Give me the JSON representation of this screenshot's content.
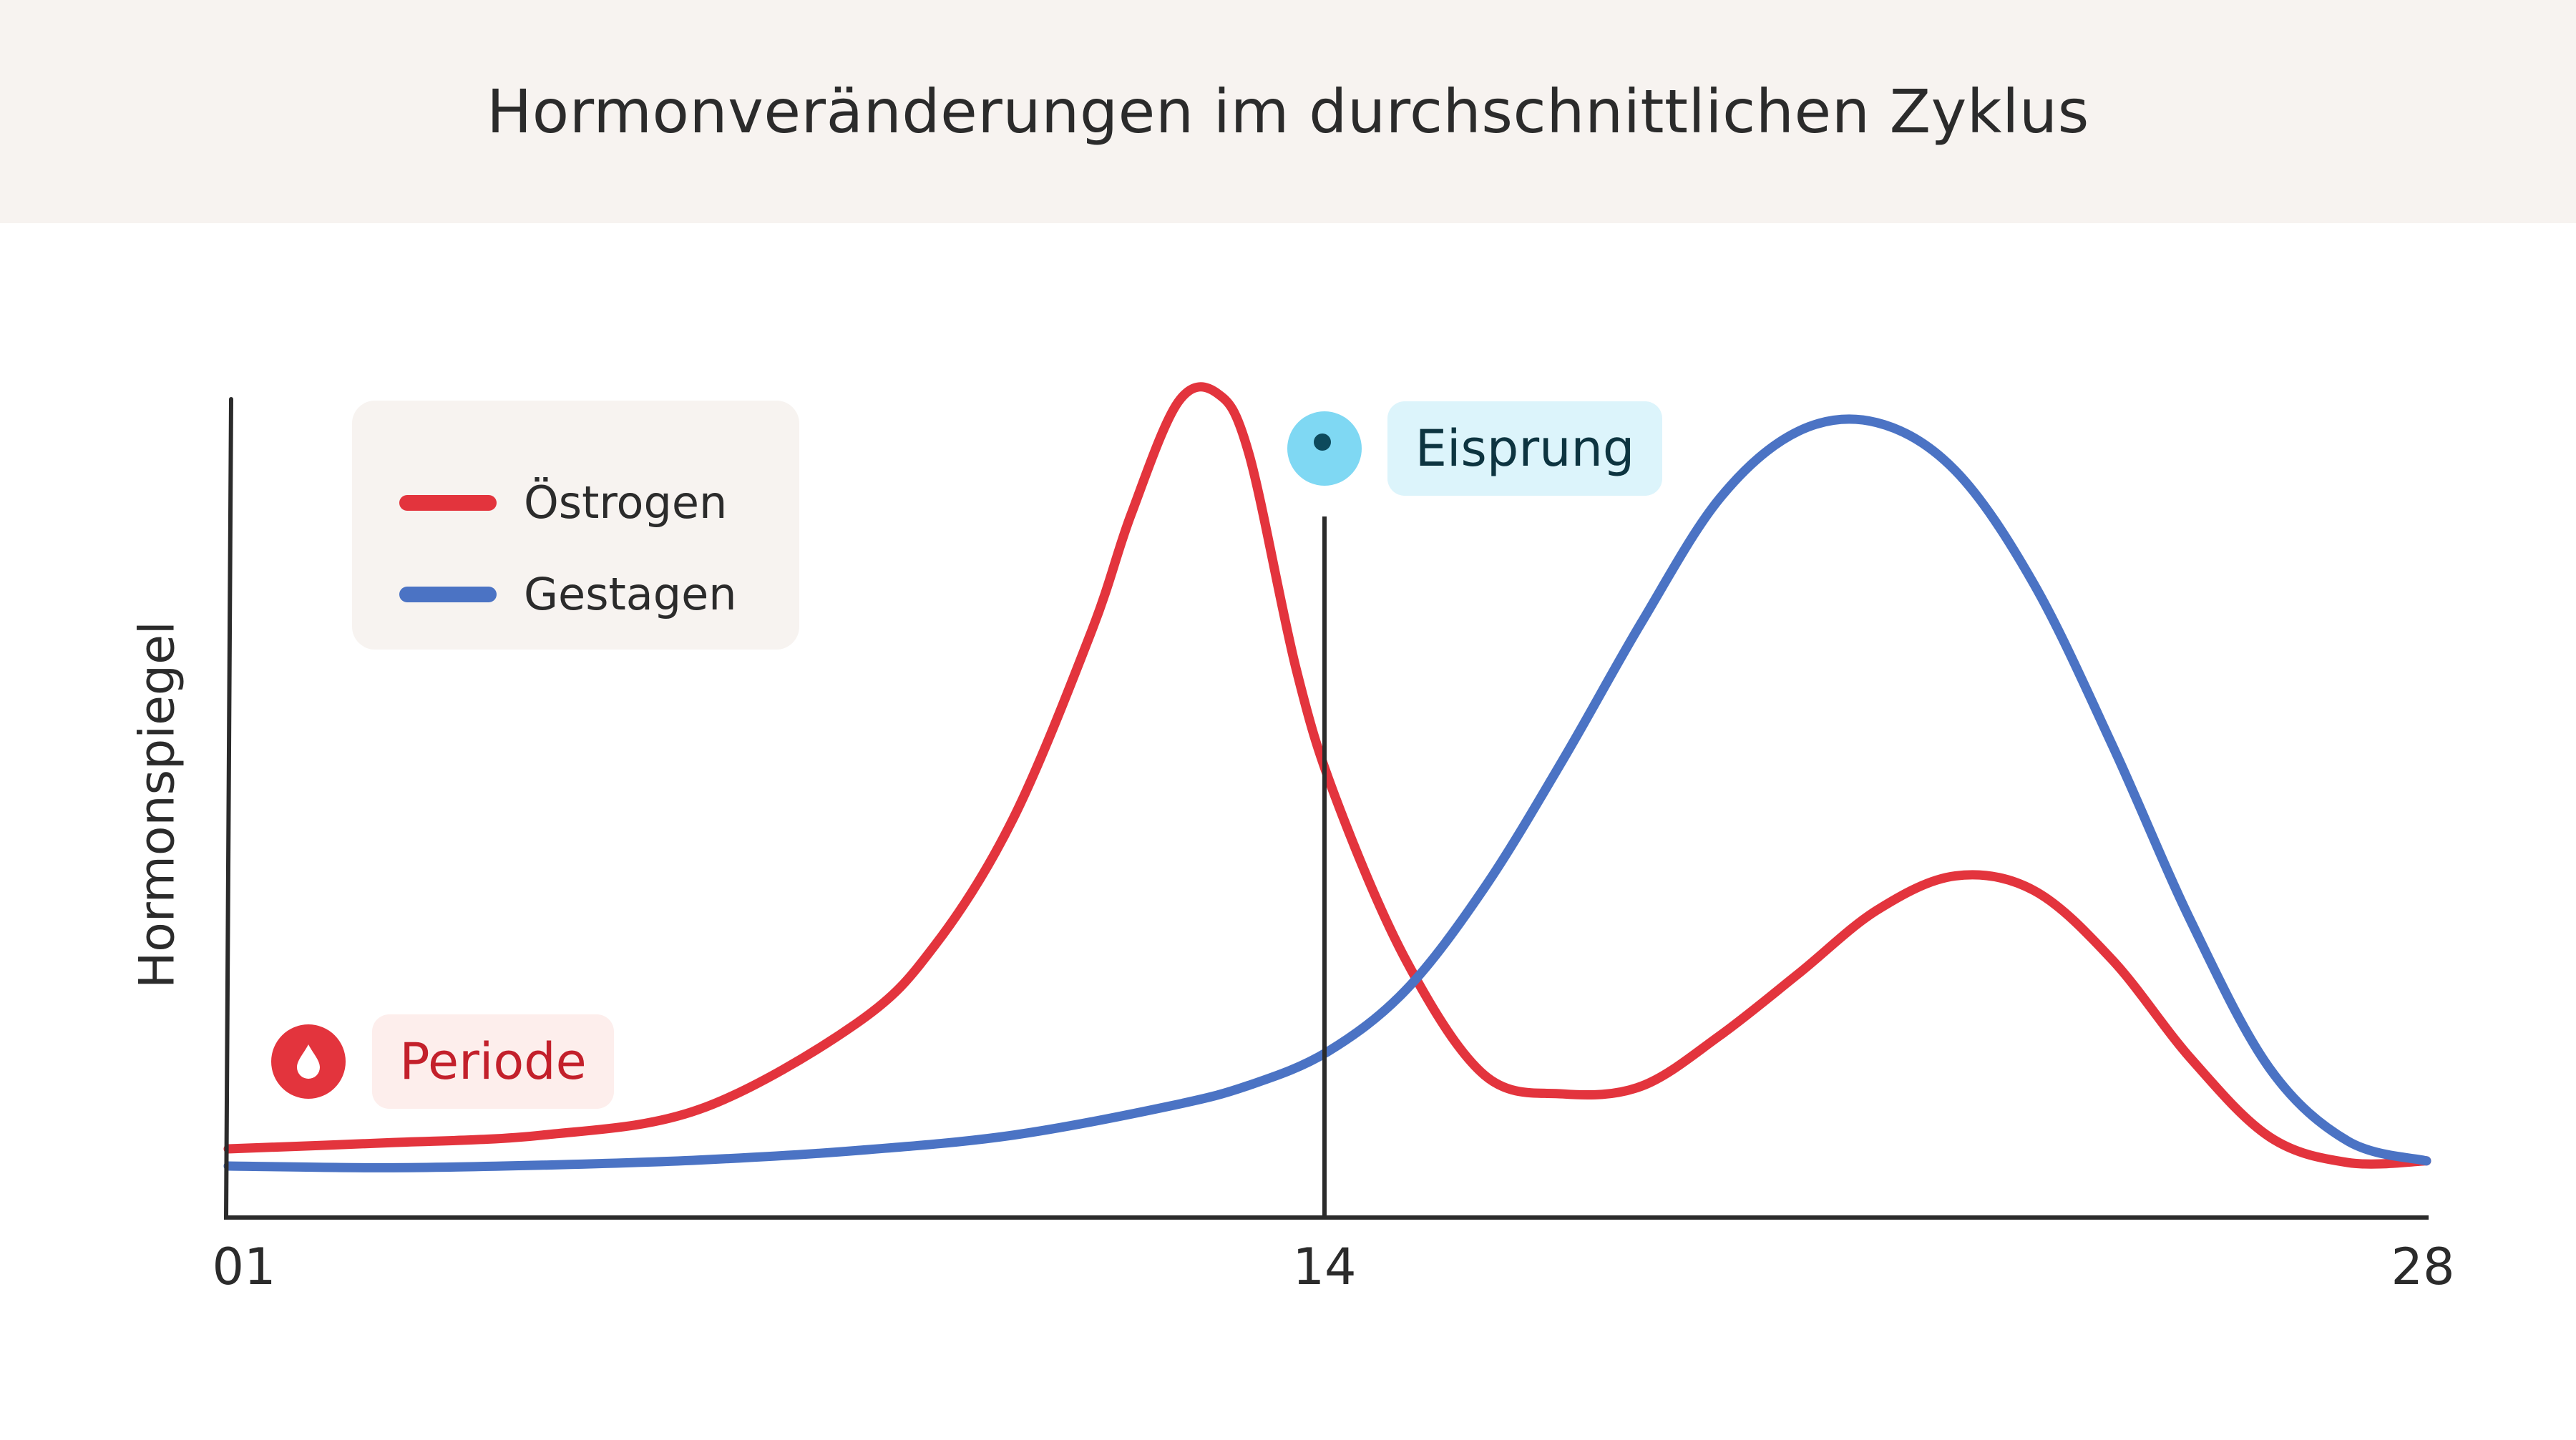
{
  "title": "Hormonveränderungen im durchschnittlichen Zyklus",
  "colors": {
    "estrogen": "#e3343d",
    "progestin": "#4b73c4",
    "period_icon": "#e3343d",
    "period_bg": "#fdeeec",
    "period_text": "#c3202b",
    "ovulation_icon": "#7fd8f3",
    "ovulation_dot": "#0d4a5c",
    "ovulation_bg": "#dcf4fb",
    "ovulation_text": "#0d3440",
    "header_bg": "#f7f3f0",
    "axis": "#2b2b2b"
  },
  "legend": {
    "items": [
      {
        "label": "Östrogen",
        "color": "#e3343d"
      },
      {
        "label": "Gestagen",
        "color": "#4b73c4"
      }
    ]
  },
  "markers": {
    "period": {
      "label": "Periode",
      "icon": "drop-icon"
    },
    "ovulation": {
      "label": "Eisprung",
      "icon": "egg-cell-icon"
    }
  },
  "chart_data": {
    "type": "line",
    "title": "Hormonveränderungen im durchschnittlichen Zyklus",
    "xlabel": "",
    "ylabel": "Hormonspiegel",
    "x_ticks": [
      "01",
      "14",
      "28"
    ],
    "xlim": [
      0,
      28
    ],
    "ylim": [
      0,
      100
    ],
    "grid": false,
    "legend_position": "top-left",
    "ovulation_day": 14,
    "series": [
      {
        "name": "Östrogen",
        "points": [
          [
            0,
            8
          ],
          [
            2,
            8.7
          ],
          [
            4,
            9.6
          ],
          [
            6,
            12.6
          ],
          [
            8,
            22.6
          ],
          [
            9,
            31.7
          ],
          [
            10,
            46.5
          ],
          [
            11,
            68.4
          ],
          [
            11.5,
            81.9
          ],
          [
            12.1,
            95
          ],
          [
            12.6,
            96
          ],
          [
            13,
            89
          ],
          [
            13.6,
            64
          ],
          [
            14.1,
            49
          ],
          [
            15,
            30
          ],
          [
            16,
            16.6
          ],
          [
            17,
            14.4
          ],
          [
            18,
            15.3
          ],
          [
            19,
            21.2
          ],
          [
            20,
            28.4
          ],
          [
            21,
            35.8
          ],
          [
            22,
            39.8
          ],
          [
            23,
            38.1
          ],
          [
            24,
            30
          ],
          [
            25,
            18.5
          ],
          [
            26,
            9.4
          ],
          [
            27,
            6.4
          ],
          [
            28,
            6.6
          ]
        ]
      },
      {
        "name": "Gestagen",
        "points": [
          [
            0,
            6
          ],
          [
            2,
            5.8
          ],
          [
            4,
            6.1
          ],
          [
            6,
            6.7
          ],
          [
            8,
            7.8
          ],
          [
            10,
            9.6
          ],
          [
            12,
            13
          ],
          [
            13,
            15.4
          ],
          [
            14,
            19.3
          ],
          [
            15,
            26.5
          ],
          [
            16,
            38.4
          ],
          [
            17,
            53.3
          ],
          [
            18,
            69.3
          ],
          [
            19,
            83.8
          ],
          [
            20,
            91.6
          ],
          [
            21,
            92.6
          ],
          [
            22,
            87
          ],
          [
            23,
            73.8
          ],
          [
            24,
            55
          ],
          [
            25,
            34.5
          ],
          [
            26,
            17.4
          ],
          [
            27,
            8.9
          ],
          [
            28,
            6.6
          ]
        ]
      }
    ]
  }
}
